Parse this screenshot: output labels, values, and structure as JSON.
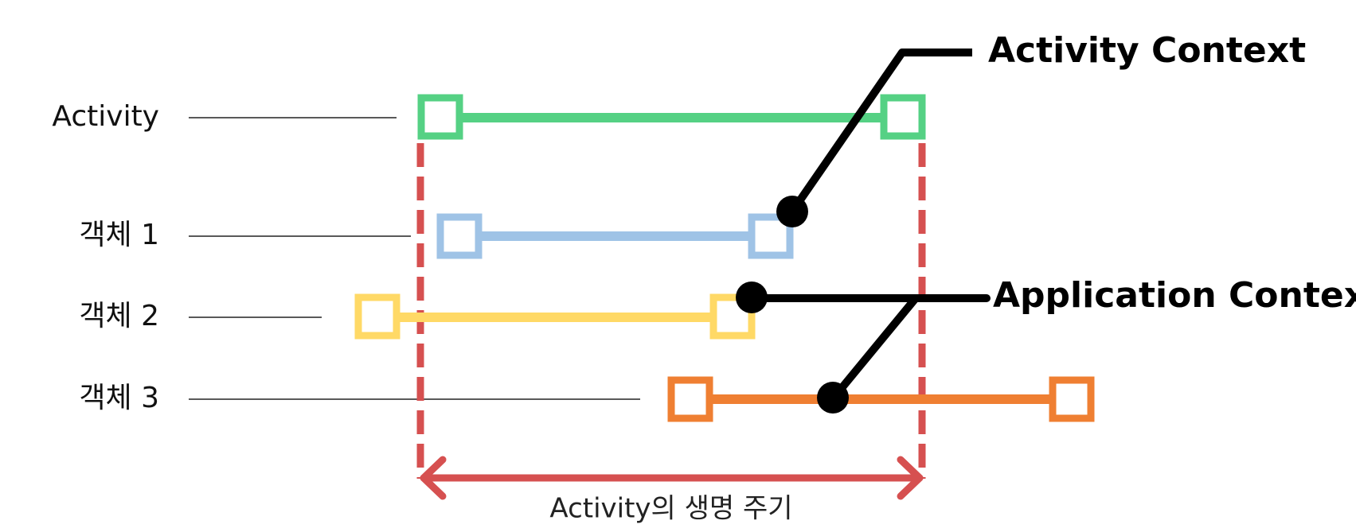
{
  "rows": [
    {
      "id": "activity",
      "label": "Activity"
    },
    {
      "id": "object1",
      "label": "객체 1"
    },
    {
      "id": "object2",
      "label": "객체 2"
    },
    {
      "id": "object3",
      "label": "객체 3"
    }
  ],
  "callouts": {
    "activity_context": "Activity Context",
    "application_context": "Application Context"
  },
  "lifecycle": {
    "label": "Activity의 생명 주기"
  },
  "colors": {
    "activity": "#55d184",
    "object1": "#9fc3e6",
    "object2": "#ffd966",
    "object3": "#ef7f32",
    "lifecycle": "#d65050",
    "connector": "#000000"
  }
}
